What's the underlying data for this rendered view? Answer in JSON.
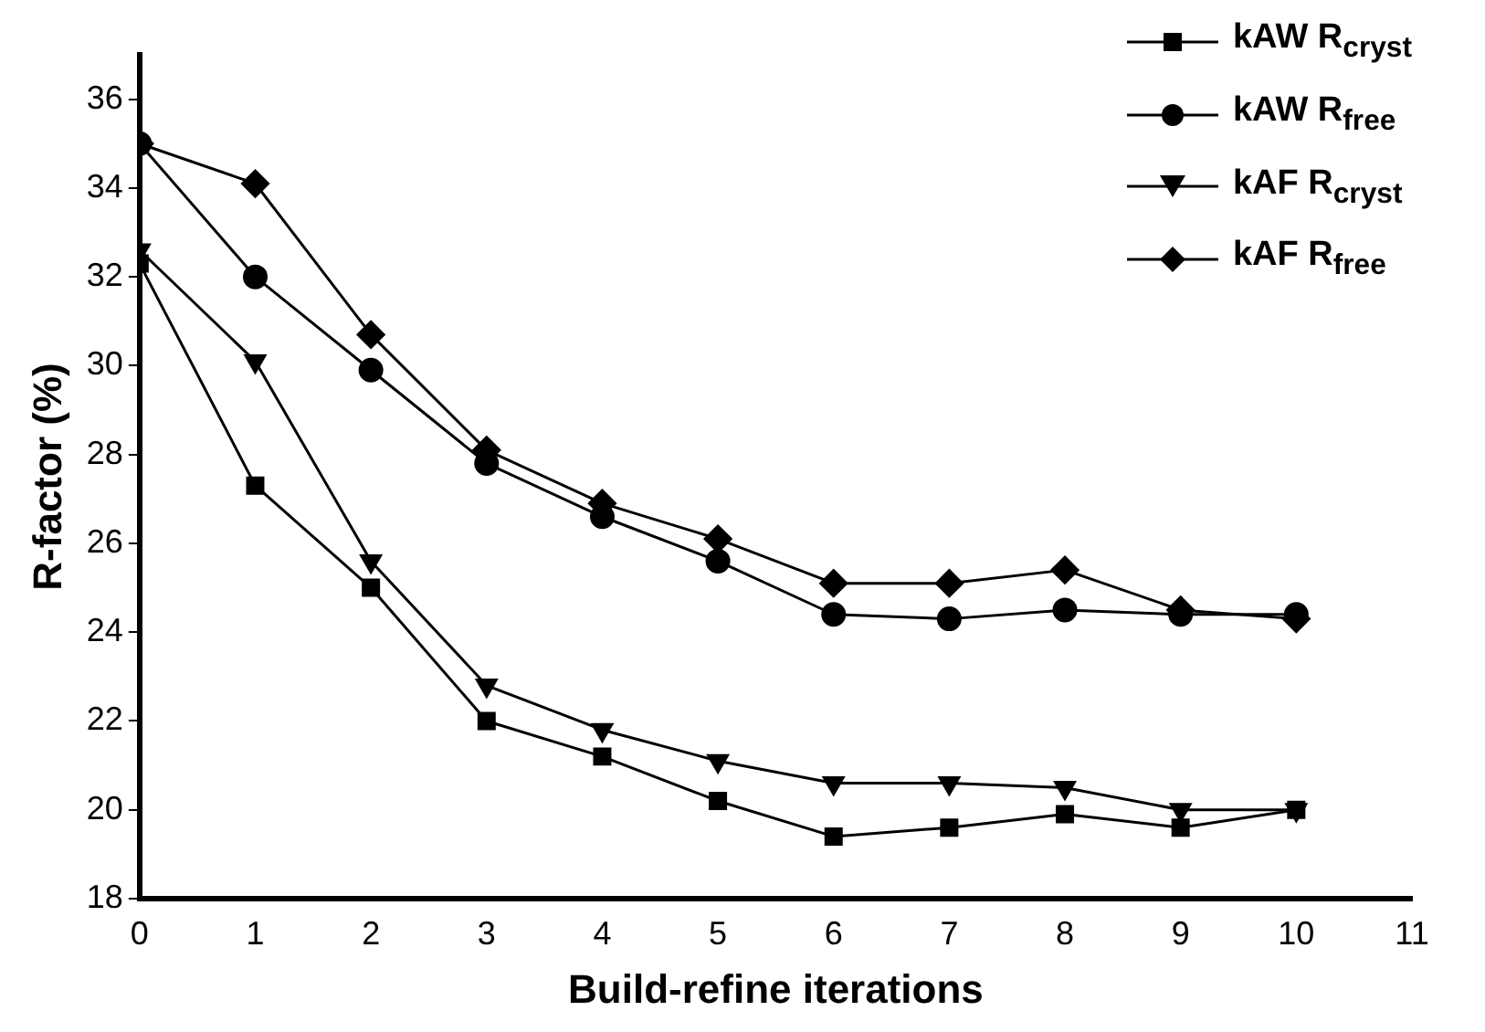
{
  "chart_data": {
    "type": "line",
    "xlabel": "Build-refine iterations",
    "ylabel": "R-factor (%)",
    "x": [
      0,
      1,
      2,
      3,
      4,
      5,
      6,
      7,
      8,
      9,
      10
    ],
    "xlim": [
      0,
      11
    ],
    "xticks": [
      0,
      1,
      2,
      3,
      4,
      5,
      6,
      7,
      8,
      9,
      10,
      11
    ],
    "ylim": [
      18,
      37
    ],
    "yticks": [
      18,
      20,
      22,
      24,
      26,
      28,
      30,
      32,
      34,
      36
    ],
    "grid": false,
    "legend": "top right",
    "line_style": "solid",
    "series": [
      {
        "name": "kAW R$_{cryst}$",
        "color": "#000000",
        "marker": "square",
        "values": [
          32.3,
          27.3,
          25.0,
          22.0,
          21.2,
          20.2,
          19.4,
          19.6,
          19.9,
          19.6,
          20.0
        ]
      },
      {
        "name": "kAW R$_{free}$",
        "color": "#000000",
        "marker": "circle",
        "values": [
          35.0,
          32.0,
          29.9,
          27.8,
          26.6,
          25.6,
          24.4,
          24.3,
          24.5,
          24.4,
          24.4
        ]
      },
      {
        "name": "kAF R$_{cryst}$",
        "color": "#000000",
        "marker": "triangle",
        "values": [
          32.6,
          30.1,
          25.6,
          22.8,
          21.8,
          21.1,
          20.6,
          20.6,
          20.5,
          20.0,
          20.0
        ]
      },
      {
        "name": "kAF R$_{free}$",
        "color": "#000000",
        "marker": "diamond",
        "values": [
          35.0,
          34.1,
          30.7,
          28.1,
          26.9,
          26.1,
          25.1,
          25.1,
          25.4,
          24.5,
          24.3
        ]
      }
    ]
  }
}
